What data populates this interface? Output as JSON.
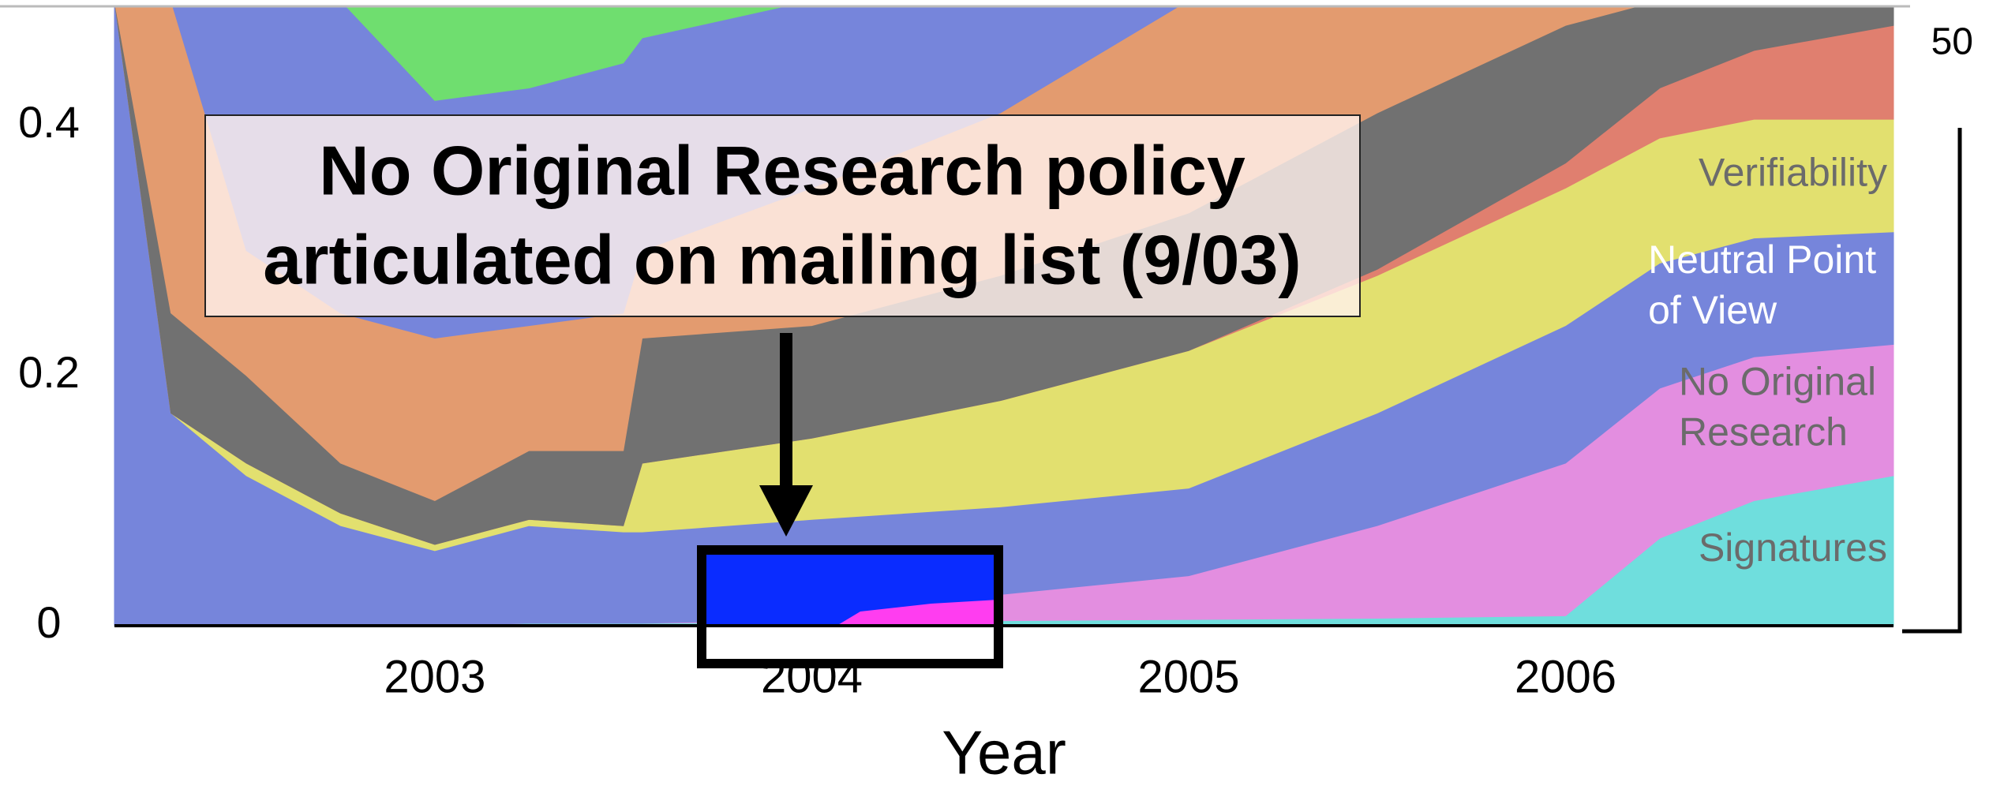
{
  "chart_data": {
    "type": "stacked_area",
    "x": [
      2002.15,
      2002.3,
      2002.5,
      2002.75,
      2003,
      2003.25,
      2003.5,
      2003.55,
      2004,
      2004.5,
      2005,
      2005.5,
      2006,
      2006.25,
      2006.5,
      2006.87
    ],
    "series": [
      {
        "name": "Signatures",
        "color": "#6fdedd",
        "label_color": "#6b6b6b",
        "values": [
          0,
          0,
          0,
          0,
          0,
          0.002,
          0.002,
          0.002,
          0.003,
          0.004,
          0.005,
          0.006,
          0.008,
          0.07,
          0.1,
          0.12
        ]
      },
      {
        "name": "No Original Research",
        "color": "#e38ee0",
        "label_color": "#6b6b6b",
        "values": [
          0,
          0,
          0,
          0,
          0,
          0,
          0,
          0,
          0.002,
          0.021,
          0.035,
          0.074,
          0.122,
          0.12,
          0.115,
          0.105
        ]
      },
      {
        "name": "Neutral Point of View",
        "color": "#7685db",
        "label_color": "#ffffff",
        "values": [
          0.5,
          0.17,
          0.12,
          0.08,
          0.06,
          0.078,
          0.073,
          0.073,
          0.08,
          0.07,
          0.07,
          0.09,
          0.11,
          0.1,
          0.095,
          0.09
        ]
      },
      {
        "name": "Verifiability",
        "color": "#e2e06f",
        "label_color": "#6b6b6b",
        "values": [
          0,
          0,
          0.01,
          0.01,
          0.005,
          0.005,
          0.005,
          0.055,
          0.065,
          0.085,
          0.11,
          0.11,
          0.11,
          0.1,
          0.095,
          0.09
        ]
      },
      {
        "color": "#e07f6f",
        "values": [
          0,
          0,
          0,
          0,
          0,
          0,
          0,
          0,
          0,
          0,
          0,
          0.005,
          0.02,
          0.04,
          0.055,
          0.075
        ]
      },
      {
        "color": "#717171",
        "values": [
          0,
          0.08,
          0.07,
          0.04,
          0.035,
          0.055,
          0.06,
          0.1,
          0.09,
          0.1,
          0.11,
          0.125,
          0.11,
          0.07,
          0.04,
          0.02
        ]
      },
      {
        "color": "#e39b6f",
        "values": [
          0,
          0.25,
          0.1,
          0.12,
          0.13,
          0.1,
          0.11,
          0.07,
          0.11,
          0.13,
          0.17,
          0.09,
          0.02,
          0,
          0,
          0
        ]
      },
      {
        "color": "#7685db",
        "values": [
          0,
          0,
          0.2,
          0.25,
          0.19,
          0.19,
          0.2,
          0.17,
          0.15,
          0.09,
          0,
          0,
          0,
          0,
          0,
          0
        ]
      },
      {
        "color": "#6fde6f",
        "values": [
          0,
          0,
          0,
          0,
          0.08,
          0.07,
          0.05,
          0.03,
          0,
          0,
          0,
          0,
          0,
          0,
          0,
          0
        ]
      }
    ],
    "xlabel": "Year",
    "xlim": [
      2002.15,
      2006.87
    ],
    "xticks": [
      2003,
      2004,
      2005,
      2006
    ],
    "ylim": [
      0,
      0.5
    ],
    "yticks": [
      0,
      0.2,
      0.4
    ],
    "grid": false,
    "right_label": "50",
    "annotation_lines": [
      "No Original Research policy",
      "articulated on mailing list (9/03)"
    ]
  }
}
